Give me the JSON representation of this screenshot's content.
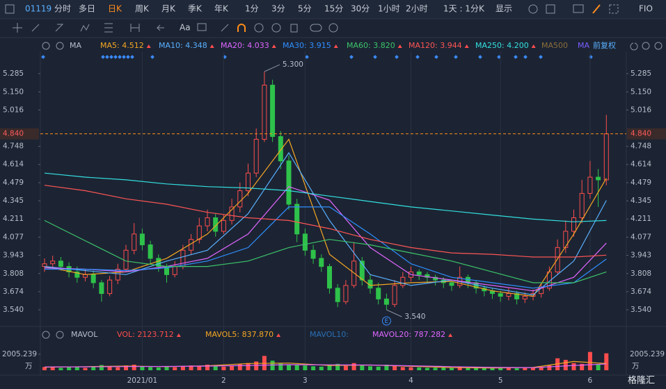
{
  "toolbar": [
    "01119",
    "分时",
    "多日",
    "日K",
    "周K",
    "月K",
    "季K",
    "年K",
    "1分",
    "3分",
    "5分",
    "15分",
    "30分",
    "1小时",
    "2小时",
    "1天 : 1分K",
    "显示",
    "FIO"
  ],
  "drawing_bar": {
    "text_tool": "Aa"
  },
  "ma_bar": {
    "title": "MA",
    "adjust": "前复权"
  },
  "vol_bar": {
    "title": "MAVOL",
    "label": "VOL: 2123.712",
    "color": "#ff4d4d"
  },
  "logo": "格隆汇",
  "chart_data": {
    "type": "candlestick",
    "categories": [
      null,
      null,
      null,
      null,
      null,
      null,
      null,
      null,
      null,
      null,
      null,
      null,
      "2021/01",
      null,
      null,
      null,
      null,
      null,
      null,
      null,
      null,
      null,
      "2",
      null,
      null,
      null,
      null,
      null,
      null,
      null,
      null,
      null,
      "3",
      null,
      null,
      null,
      null,
      null,
      null,
      null,
      null,
      null,
      null,
      null,
      null,
      "4",
      null,
      null,
      null,
      null,
      null,
      null,
      null,
      null,
      null,
      null,
      "5",
      null,
      null,
      null,
      null,
      null,
      null,
      null,
      null,
      null,
      null,
      "6",
      null,
      null
    ],
    "open": [
      3.86,
      3.88,
      3.9,
      3.86,
      3.82,
      3.78,
      3.8,
      3.74,
      3.66,
      3.76,
      3.84,
      3.98,
      4.1,
      4.02,
      3.92,
      3.86,
      3.8,
      3.86,
      3.98,
      4.06,
      4.16,
      4.22,
      4.12,
      4.2,
      4.3,
      4.42,
      4.55,
      4.8,
      5.2,
      4.82,
      4.64,
      4.32,
      4.1,
      3.98,
      3.92,
      3.86,
      3.7,
      3.6,
      3.72,
      3.9,
      3.76,
      3.7,
      3.62,
      3.58,
      3.72,
      3.78,
      3.82,
      3.8,
      3.78,
      3.76,
      3.74,
      3.72,
      3.78,
      3.74,
      3.7,
      3.68,
      3.66,
      3.64,
      3.66,
      3.62,
      3.64,
      3.66,
      3.7,
      3.82,
      4.0,
      4.12,
      4.22,
      4.4,
      4.52,
      4.5
    ],
    "high": [
      3.92,
      3.94,
      3.93,
      3.89,
      3.86,
      3.84,
      3.83,
      3.76,
      3.79,
      3.88,
      4.02,
      4.18,
      4.14,
      4.05,
      3.95,
      3.88,
      3.9,
      4.02,
      4.1,
      4.22,
      4.28,
      4.25,
      4.24,
      4.36,
      4.48,
      4.62,
      4.88,
      5.3,
      5.24,
      4.86,
      4.68,
      4.36,
      4.14,
      4.02,
      3.95,
      3.88,
      3.73,
      3.76,
      4.04,
      3.93,
      3.8,
      3.74,
      3.66,
      3.76,
      3.82,
      3.86,
      3.84,
      3.82,
      3.8,
      3.78,
      3.76,
      3.86,
      3.8,
      3.76,
      3.72,
      3.7,
      3.68,
      3.7,
      3.68,
      3.67,
      3.69,
      3.74,
      3.86,
      4.06,
      4.2,
      4.28,
      4.5,
      4.64,
      4.58,
      4.98
    ],
    "low": [
      3.82,
      3.84,
      3.83,
      3.78,
      3.74,
      3.75,
      3.7,
      3.6,
      3.64,
      3.73,
      3.82,
      3.95,
      3.98,
      3.88,
      3.82,
      3.74,
      3.78,
      3.84,
      3.95,
      4.03,
      4.12,
      4.08,
      4.1,
      4.17,
      4.26,
      4.38,
      4.52,
      4.78,
      4.78,
      4.58,
      4.28,
      4.04,
      3.94,
      3.88,
      3.82,
      3.66,
      3.56,
      3.58,
      3.7,
      3.72,
      3.66,
      3.58,
      3.54,
      3.56,
      3.7,
      3.75,
      3.76,
      3.74,
      3.72,
      3.7,
      3.68,
      3.7,
      3.7,
      3.66,
      3.64,
      3.62,
      3.6,
      3.61,
      3.58,
      3.59,
      3.61,
      3.63,
      3.68,
      3.8,
      3.96,
      4.08,
      4.18,
      4.36,
      4.3,
      4.46
    ],
    "close": [
      3.88,
      3.9,
      3.86,
      3.82,
      3.78,
      3.8,
      3.74,
      3.66,
      3.76,
      3.84,
      3.98,
      4.1,
      4.02,
      3.92,
      3.86,
      3.8,
      3.86,
      3.98,
      4.06,
      4.16,
      4.22,
      4.12,
      4.2,
      4.3,
      4.42,
      4.55,
      4.8,
      5.2,
      4.82,
      4.64,
      4.32,
      4.1,
      3.98,
      3.92,
      3.86,
      3.7,
      3.6,
      3.72,
      3.9,
      3.76,
      3.7,
      3.62,
      3.58,
      3.72,
      3.78,
      3.82,
      3.8,
      3.78,
      3.76,
      3.74,
      3.72,
      3.78,
      3.74,
      3.7,
      3.68,
      3.66,
      3.64,
      3.66,
      3.62,
      3.64,
      3.66,
      3.7,
      3.82,
      4.0,
      4.12,
      4.22,
      4.4,
      4.52,
      4.5,
      4.84
    ],
    "volume": [
      400,
      350,
      300,
      380,
      420,
      300,
      500,
      650,
      450,
      380,
      600,
      700,
      500,
      400,
      350,
      450,
      380,
      500,
      600,
      550,
      700,
      500,
      450,
      600,
      800,
      900,
      1100,
      1800,
      1200,
      900,
      700,
      650,
      600,
      500,
      450,
      600,
      800,
      550,
      900,
      600,
      500,
      450,
      700,
      550,
      400,
      380,
      350,
      300,
      320,
      350,
      300,
      400,
      350,
      300,
      280,
      260,
      300,
      280,
      250,
      300,
      320,
      350,
      600,
      1500,
      1300,
      900,
      800,
      2300,
      700,
      2123.712
    ],
    "up_color": "#ff4d4d",
    "down_color": "#2fc24a",
    "ylim": [
      3.427,
      5.367
    ],
    "yticks": [
      5.285,
      {
        "value": 5.15,
        "label": "5.150"
      },
      5.016,
      4.748,
      4.614,
      4.479,
      4.345,
      4.211,
      4.077,
      3.943,
      3.808,
      3.674,
      {
        "value": 3.54,
        "label": "3.540"
      }
    ],
    "last_price": {
      "value": 4.84,
      "label": "4.840",
      "color": "#ff8c1a"
    },
    "annotations": [
      {
        "value": 5.3,
        "label": "5.300",
        "index": 27
      },
      {
        "value": 3.54,
        "label": "3.540",
        "index": 42
      }
    ],
    "event_marker": "E",
    "ma_x": [
      0,
      5,
      10,
      15,
      20,
      25,
      30,
      35,
      40,
      45,
      50,
      55,
      60,
      65,
      69
    ],
    "ma_series": [
      {
        "name": "MA5: 4.512",
        "color": "#f5a623",
        "values": [
          3.86,
          3.8,
          3.82,
          3.92,
          4.1,
          4.4,
          4.8,
          3.95,
          3.72,
          3.74,
          3.75,
          3.68,
          3.64,
          4.1,
          4.512
        ]
      },
      {
        "name": "MA10: 4.348",
        "color": "#5ab0ff",
        "values": [
          3.86,
          3.83,
          3.8,
          3.9,
          3.98,
          4.25,
          4.7,
          4.2,
          3.8,
          3.72,
          3.76,
          3.7,
          3.65,
          3.9,
          4.348
        ]
      },
      {
        "name": "MA20: 4.033",
        "color": "#e066ff",
        "values": [
          3.85,
          3.84,
          3.82,
          3.86,
          3.92,
          4.1,
          4.45,
          4.35,
          4.0,
          3.8,
          3.76,
          3.72,
          3.68,
          3.78,
          4.033
        ]
      },
      {
        "name": "MA30: 3.915",
        "color": "#2f8fff",
        "values": [
          3.84,
          3.84,
          3.83,
          3.85,
          3.9,
          4.0,
          4.3,
          4.3,
          4.1,
          3.88,
          3.78,
          3.74,
          3.7,
          3.74,
          3.915
        ]
      },
      {
        "name": "MA60: 3.820",
        "color": "#3cc46a",
        "values": [
          4.2,
          4.05,
          3.9,
          3.86,
          3.86,
          3.9,
          4.0,
          4.06,
          4.02,
          3.96,
          3.9,
          3.82,
          3.74,
          3.74,
          3.82
        ]
      },
      {
        "name": "MA120: 3.944",
        "color": "#ff5555",
        "values": [
          4.46,
          4.42,
          4.36,
          4.32,
          4.26,
          4.22,
          4.2,
          4.14,
          4.06,
          4.0,
          3.96,
          3.95,
          3.93,
          3.93,
          3.944
        ]
      },
      {
        "name": "MA250: 4.200",
        "color": "#33e0e0",
        "values": [
          4.55,
          4.52,
          4.5,
          4.47,
          4.45,
          4.44,
          4.42,
          4.38,
          4.34,
          4.3,
          4.27,
          4.24,
          4.21,
          4.19,
          4.2
        ]
      }
    ],
    "ma_extra": [
      {
        "name": "MA500",
        "color": "#8a6d3b"
      },
      {
        "name": "MA",
        "color": "#7b5cff"
      }
    ],
    "vol_ylim": [
      0,
      2005.239
    ],
    "vol_yticks": [
      2005.239
    ],
    "vol_unit": "万",
    "vol_ma_series": [
      {
        "name": "MAVOL5: 837.870",
        "color": "#f5a623",
        "values": [
          380,
          450,
          520,
          450,
          560,
          850,
          900,
          600,
          650,
          500,
          330,
          280,
          350,
          1100,
          837.87
        ]
      },
      {
        "name": "MAVOL10:",
        "color": "#2a6fb5",
        "values": null
      },
      {
        "name": "MAVOL20: 787.282",
        "color": "#e066ff",
        "values": [
          420,
          430,
          460,
          480,
          520,
          600,
          700,
          680,
          650,
          560,
          450,
          360,
          320,
          600,
          787.282
        ]
      }
    ]
  }
}
